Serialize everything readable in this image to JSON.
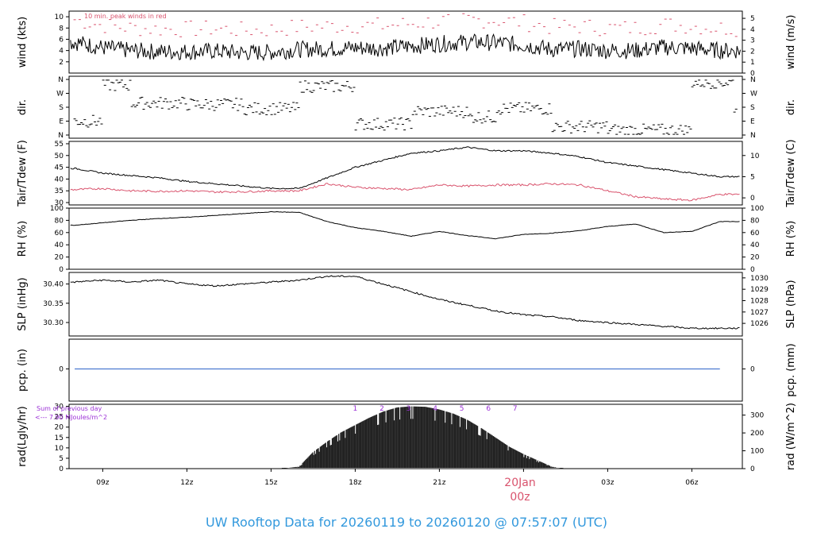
{
  "footer": {
    "title": "UW Rooftop Data for 20260119  to  20260120 @ 07:57:07  (UTC)",
    "day_label": "20Jan",
    "day_sub": "00z"
  },
  "colors": {
    "line": "#000000",
    "red": "#d9536d",
    "blue": "#2e63c9",
    "purple": "#9b30d6",
    "title": "#3399dd",
    "dash": "#d9536d"
  },
  "chart_data": [
    {
      "type": "line",
      "panel": "wind",
      "ylabel": "wind (kts)",
      "ylabel_right": "wind (m/s)",
      "yticks": [
        "2",
        "4",
        "6",
        "8",
        "10"
      ],
      "yticks_right": [
        "0",
        "1",
        "2",
        "3",
        "4",
        "5"
      ],
      "ylim": [
        0,
        11
      ],
      "annotation": "10 min. peak winds in red",
      "series": [
        {
          "x": [
            8,
            9,
            10,
            11,
            12,
            13,
            14,
            15,
            16,
            17,
            18,
            19,
            20,
            21,
            22,
            23,
            24,
            25,
            26,
            27,
            28,
            29,
            30,
            31
          ],
          "values": [
            5.5,
            4.5,
            4.0,
            3.8,
            3.8,
            3.9,
            3.6,
            3.7,
            4.2,
            4.3,
            4.5,
            4.4,
            4.8,
            5.2,
            5.5,
            5.4,
            5.0,
            4.2,
            4.3,
            4.0,
            4.0,
            4.6,
            4.4,
            4.0
          ]
        }
      ]
    },
    {
      "type": "scatter",
      "panel": "dir.",
      "ylabel": "dir.",
      "ylabel_right": "dir.",
      "yticks": [
        "N",
        "W",
        "S",
        "E",
        "N"
      ],
      "yticks_right": [
        "N",
        "W",
        "S",
        "E",
        "N"
      ]
    },
    {
      "type": "line",
      "panel": "temperature",
      "ylabel": "Tair/Tdew (F)",
      "ylabel_right": "Tair/Tdew (C)",
      "yticks": [
        "30",
        "35",
        "40",
        "45",
        "50",
        "55"
      ],
      "yticks_right": [
        "0",
        "5",
        "10"
      ],
      "ylim": [
        29,
        56
      ],
      "series": [
        {
          "x": [
            8,
            9,
            10,
            11,
            12,
            13,
            14,
            15,
            16,
            17,
            18,
            19,
            20,
            21,
            22,
            23,
            24,
            25,
            26,
            27,
            28,
            29,
            30,
            31
          ],
          "values": [
            44.5,
            42.5,
            41.5,
            40.5,
            39.0,
            38.0,
            37.0,
            36.0,
            36.0,
            40.5,
            45.0,
            48.0,
            51.0,
            52.0,
            53.5,
            52.0,
            52.0,
            51.0,
            49.5,
            47.0,
            45.5,
            44.0,
            42.5,
            41.0
          ]
        },
        {
          "x": [
            8,
            9,
            10,
            11,
            12,
            13,
            14,
            15,
            16,
            17,
            18,
            19,
            20,
            21,
            22,
            23,
            24,
            25,
            26,
            27,
            28,
            29,
            30,
            31
          ],
          "values": [
            35.5,
            36.0,
            35.0,
            34.8,
            35.0,
            34.5,
            34.6,
            35.0,
            35.0,
            38.0,
            36.5,
            36.0,
            35.5,
            37.5,
            37.0,
            37.5,
            37.5,
            38.0,
            37.5,
            35.0,
            32.5,
            31.5,
            31.0,
            33.5
          ]
        }
      ]
    },
    {
      "type": "line",
      "panel": "rh",
      "ylabel": "RH (%)",
      "ylabel_right": "RH (%)",
      "yticks": [
        "0",
        "20",
        "40",
        "60",
        "80",
        "100"
      ],
      "yticks_right": [
        "0",
        "20",
        "40",
        "60",
        "80",
        "100"
      ],
      "ylim": [
        0,
        100
      ],
      "series": [
        {
          "x": [
            8,
            9,
            10,
            11,
            12,
            13,
            14,
            15,
            16,
            17,
            18,
            19,
            20,
            21,
            22,
            23,
            24,
            25,
            26,
            27,
            28,
            29,
            30,
            31
          ],
          "values": [
            72,
            76,
            80,
            83,
            85,
            88,
            91,
            94,
            93,
            78,
            68,
            62,
            54,
            62,
            55,
            50,
            57,
            59,
            63,
            70,
            74,
            60,
            62,
            78
          ]
        }
      ]
    },
    {
      "type": "line",
      "panel": "slp",
      "ylabel": "SLP (inHg)",
      "ylabel_right": "SLP (hPa)",
      "yticks": [
        "30.30",
        "30.35",
        "30.40"
      ],
      "yticks_right": [
        "1026",
        "1027",
        "1028",
        "1029",
        "1030"
      ],
      "ylim": [
        30.265,
        30.43
      ],
      "series": [
        {
          "x": [
            8,
            9,
            10,
            11,
            12,
            13,
            14,
            15,
            16,
            17,
            18,
            19,
            20,
            21,
            22,
            23,
            24,
            25,
            26,
            27,
            28,
            29,
            30,
            31
          ],
          "values": [
            30.405,
            30.41,
            30.405,
            30.41,
            30.4,
            30.395,
            30.4,
            30.405,
            30.41,
            30.42,
            30.42,
            30.4,
            30.38,
            30.36,
            30.345,
            30.33,
            30.32,
            30.315,
            30.305,
            30.3,
            30.295,
            30.29,
            30.285,
            30.285
          ]
        }
      ]
    },
    {
      "type": "line",
      "panel": "pcp",
      "ylabel": "pcp. (in)",
      "ylabel_right": "pcp. (mm)",
      "yticks": [
        "0"
      ],
      "yticks_right": [
        "0"
      ],
      "series": [
        {
          "x": [
            8,
            31
          ],
          "values": [
            0,
            0
          ]
        }
      ]
    },
    {
      "type": "area",
      "panel": "rad",
      "ylabel": "rad(Lgly/hr)",
      "ylabel_right": "rad (W/m^2)",
      "yticks": [
        "0",
        "5",
        "10",
        "15",
        "20",
        "25",
        "30"
      ],
      "yticks_right": [
        "0",
        "100",
        "200",
        "300"
      ],
      "ylim": [
        0,
        31
      ],
      "annotation_1": "Sum of previous day",
      "annotation_2": "<--- 7.90 MJoules/m^2",
      "hour_labels": [
        "1",
        "2",
        "3",
        "4",
        "5",
        "6",
        "7"
      ],
      "series": [
        {
          "x": [
            15.4,
            16.0,
            16.5,
            17.0,
            17.5,
            18.0,
            18.5,
            19.0,
            19.5,
            20.0,
            20.5,
            21.0,
            21.5,
            22.0,
            22.5,
            23.0,
            23.5,
            24.0,
            24.5,
            25.0,
            25.4
          ],
          "values": [
            0,
            1,
            8,
            13,
            17.5,
            21,
            24.5,
            27.5,
            29.5,
            30,
            29.8,
            28.5,
            26.5,
            23.5,
            19.5,
            15,
            10.5,
            7,
            4,
            1,
            0
          ]
        }
      ]
    }
  ],
  "x_axis": {
    "ticks": [
      "09z",
      "12z",
      "15z",
      "18z",
      "21z",
      "00z",
      "03z",
      "06z"
    ]
  }
}
